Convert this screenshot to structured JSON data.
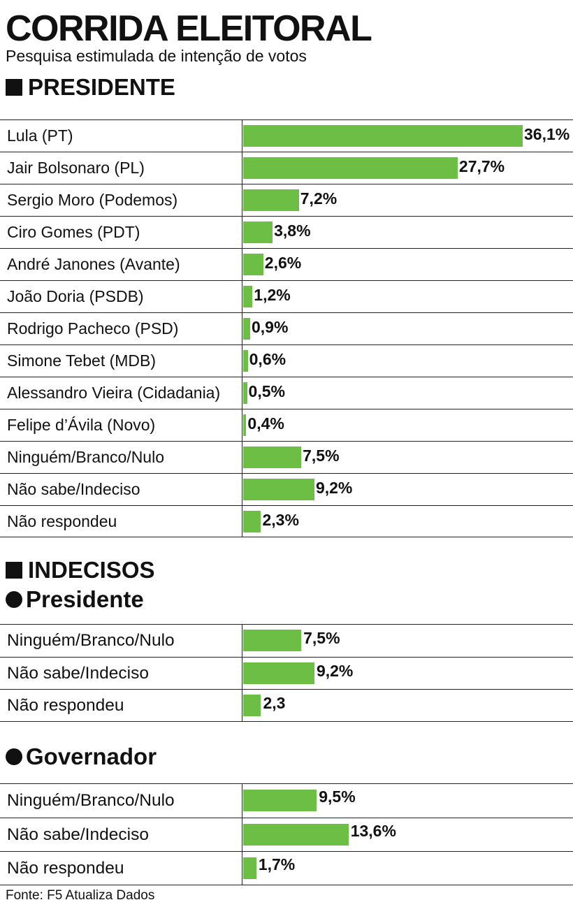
{
  "header": {
    "title": "CORRIDA ELEITORAL",
    "subtitle": "Pesquisa estimulada de intenção de votos"
  },
  "sections": {
    "president": "PRESIDENTE",
    "undecided": "INDECISOS",
    "undecided_president": "Presidente",
    "undecided_governor": "Governador"
  },
  "source": "Fonte: F5 Atualiza Dados",
  "chart_data": [
    {
      "type": "bar",
      "orientation": "horizontal",
      "title": "PRESIDENTE",
      "color": "#6dbe45",
      "categories": [
        "Lula (PT)",
        "Jair Bolsonaro (PL)",
        "Sergio Moro (Podemos)",
        "Ciro Gomes (PDT)",
        "André Janones (Avante)",
        "João Doria (PSDB)",
        "Rodrigo Pacheco (PSD)",
        "Simone Tebet (MDB)",
        "Alessandro Vieira (Cidadania)",
        "Felipe d’Ávila (Novo)",
        "Ninguém/Branco/Nulo",
        "Não sabe/Indeciso",
        "Não respondeu"
      ],
      "values": [
        36.1,
        27.7,
        7.2,
        3.8,
        2.6,
        1.2,
        0.9,
        0.6,
        0.5,
        0.4,
        7.5,
        9.2,
        2.3
      ],
      "labels": [
        "36,1%",
        "27,7%",
        "7,2%",
        "3,8%",
        "2,6%",
        "1,2%",
        "0,9%",
        "0,6%",
        "0,5%",
        "0,4%",
        "7,5%",
        "9,2%",
        "2,3%"
      ]
    },
    {
      "type": "bar",
      "orientation": "horizontal",
      "title": "Presidente",
      "color": "#6dbe45",
      "categories": [
        "Ninguém/Branco/Nulo",
        "Não sabe/Indeciso",
        "Não respondeu"
      ],
      "values": [
        7.5,
        9.2,
        2.3
      ],
      "labels": [
        "7,5%",
        "9,2%",
        "2,3"
      ]
    },
    {
      "type": "bar",
      "orientation": "horizontal",
      "title": "Governador",
      "color": "#6dbe45",
      "categories": [
        "Ninguém/Branco/Nulo",
        "Não sabe/Indeciso",
        "Não respondeu"
      ],
      "values": [
        9.5,
        13.6,
        1.7
      ],
      "labels": [
        "9,5%",
        "13,6%",
        "1,7%"
      ]
    }
  ]
}
